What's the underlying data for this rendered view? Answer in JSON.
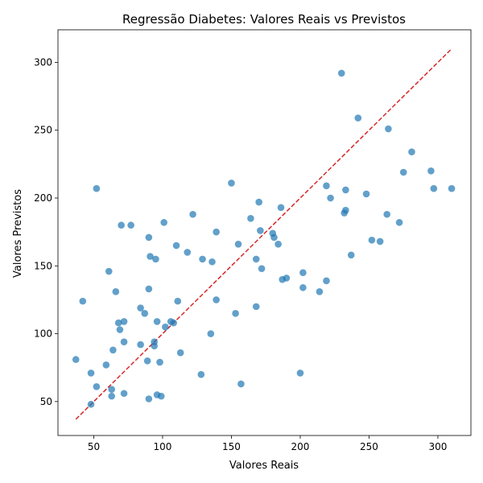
{
  "chart_data": {
    "type": "scatter",
    "title": "Regressão Diabetes: Valores Reais vs Previstos",
    "xlabel": "Valores Reais",
    "ylabel": "Valores Previstos",
    "xlim": [
      24,
      324
    ],
    "ylim": [
      25,
      324
    ],
    "xticks": [
      50,
      100,
      150,
      200,
      250,
      300
    ],
    "yticks": [
      50,
      100,
      150,
      200,
      250,
      300
    ],
    "grid": false,
    "point_color": "#1f77b4",
    "point_alpha": 0.7,
    "reference_line": {
      "x": [
        37,
        310
      ],
      "y": [
        37,
        310
      ],
      "color": "#d62728",
      "style": "dashed"
    },
    "points": [
      {
        "x": 37,
        "y": 81
      },
      {
        "x": 42,
        "y": 124
      },
      {
        "x": 48,
        "y": 71
      },
      {
        "x": 48,
        "y": 48
      },
      {
        "x": 52,
        "y": 61
      },
      {
        "x": 52,
        "y": 207
      },
      {
        "x": 59,
        "y": 77
      },
      {
        "x": 61,
        "y": 146
      },
      {
        "x": 63,
        "y": 59
      },
      {
        "x": 63,
        "y": 54
      },
      {
        "x": 64,
        "y": 88
      },
      {
        "x": 66,
        "y": 131
      },
      {
        "x": 68,
        "y": 108
      },
      {
        "x": 69,
        "y": 103
      },
      {
        "x": 70,
        "y": 180
      },
      {
        "x": 72,
        "y": 109
      },
      {
        "x": 72,
        "y": 94
      },
      {
        "x": 72,
        "y": 56
      },
      {
        "x": 77,
        "y": 180
      },
      {
        "x": 84,
        "y": 92
      },
      {
        "x": 84,
        "y": 119
      },
      {
        "x": 87,
        "y": 115
      },
      {
        "x": 89,
        "y": 80
      },
      {
        "x": 90,
        "y": 171
      },
      {
        "x": 90,
        "y": 133
      },
      {
        "x": 90,
        "y": 52
      },
      {
        "x": 91,
        "y": 157
      },
      {
        "x": 94,
        "y": 94
      },
      {
        "x": 94,
        "y": 91
      },
      {
        "x": 95,
        "y": 155
      },
      {
        "x": 96,
        "y": 109
      },
      {
        "x": 96,
        "y": 55
      },
      {
        "x": 98,
        "y": 79
      },
      {
        "x": 99,
        "y": 54
      },
      {
        "x": 101,
        "y": 182
      },
      {
        "x": 102,
        "y": 105
      },
      {
        "x": 106,
        "y": 109
      },
      {
        "x": 108,
        "y": 108
      },
      {
        "x": 110,
        "y": 165
      },
      {
        "x": 111,
        "y": 124
      },
      {
        "x": 113,
        "y": 86
      },
      {
        "x": 118,
        "y": 160
      },
      {
        "x": 122,
        "y": 188
      },
      {
        "x": 128,
        "y": 70
      },
      {
        "x": 129,
        "y": 155
      },
      {
        "x": 135,
        "y": 100
      },
      {
        "x": 136,
        "y": 153
      },
      {
        "x": 139,
        "y": 175
      },
      {
        "x": 139,
        "y": 125
      },
      {
        "x": 150,
        "y": 211
      },
      {
        "x": 153,
        "y": 115
      },
      {
        "x": 155,
        "y": 166
      },
      {
        "x": 157,
        "y": 63
      },
      {
        "x": 164,
        "y": 185
      },
      {
        "x": 168,
        "y": 155
      },
      {
        "x": 168,
        "y": 120
      },
      {
        "x": 170,
        "y": 197
      },
      {
        "x": 171,
        "y": 176
      },
      {
        "x": 172,
        "y": 148
      },
      {
        "x": 180,
        "y": 174
      },
      {
        "x": 181,
        "y": 171
      },
      {
        "x": 184,
        "y": 166
      },
      {
        "x": 186,
        "y": 193
      },
      {
        "x": 187,
        "y": 140
      },
      {
        "x": 190,
        "y": 141
      },
      {
        "x": 200,
        "y": 71
      },
      {
        "x": 202,
        "y": 134
      },
      {
        "x": 202,
        "y": 145
      },
      {
        "x": 214,
        "y": 131
      },
      {
        "x": 219,
        "y": 209
      },
      {
        "x": 219,
        "y": 139
      },
      {
        "x": 222,
        "y": 200
      },
      {
        "x": 230,
        "y": 292
      },
      {
        "x": 232,
        "y": 189
      },
      {
        "x": 233,
        "y": 191
      },
      {
        "x": 233,
        "y": 206
      },
      {
        "x": 237,
        "y": 158
      },
      {
        "x": 242,
        "y": 259
      },
      {
        "x": 248,
        "y": 203
      },
      {
        "x": 252,
        "y": 169
      },
      {
        "x": 258,
        "y": 168
      },
      {
        "x": 263,
        "y": 188
      },
      {
        "x": 264,
        "y": 251
      },
      {
        "x": 272,
        "y": 182
      },
      {
        "x": 275,
        "y": 219
      },
      {
        "x": 281,
        "y": 234
      },
      {
        "x": 295,
        "y": 220
      },
      {
        "x": 297,
        "y": 207
      },
      {
        "x": 310,
        "y": 207
      }
    ]
  }
}
